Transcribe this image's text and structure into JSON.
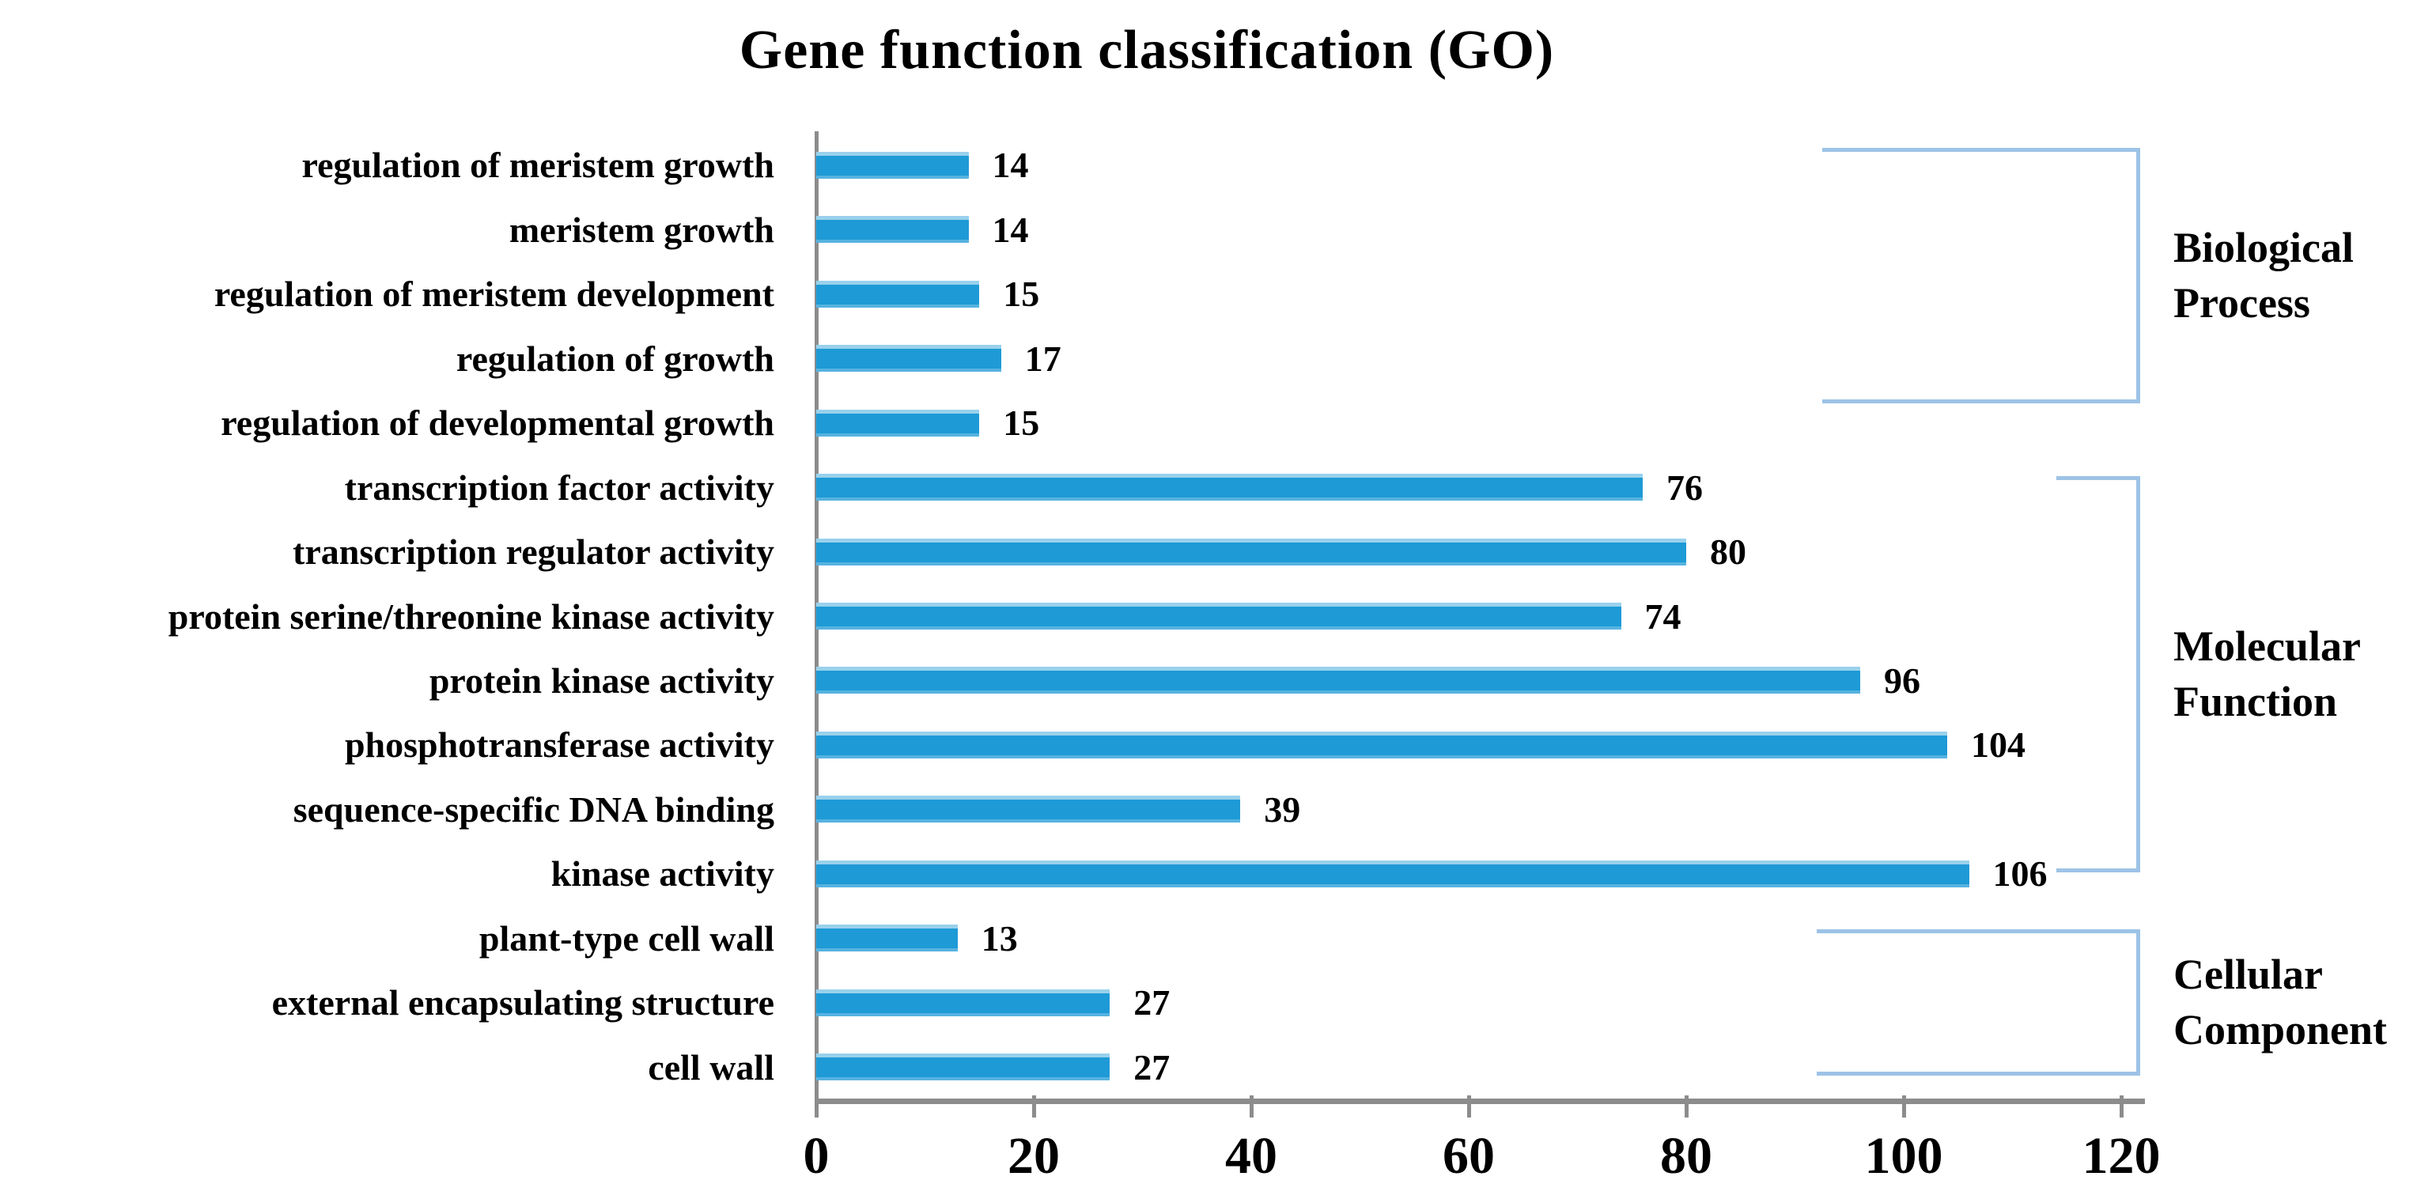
{
  "title": "Gene function classification (GO)",
  "chart_data": {
    "type": "bar",
    "orientation": "horizontal",
    "title": "Gene function classification (GO)",
    "categories": [
      "regulation of meristem growth",
      "meristem growth",
      "regulation of meristem development",
      "regulation of growth",
      "regulation of developmental growth",
      "transcription factor activity",
      "transcription regulator activity",
      "protein serine/threonine kinase activity",
      "protein kinase activity",
      "phosphotransferase activity",
      "sequence-specific DNA binding",
      "kinase activity",
      "plant-type cell wall",
      "external encapsulating structure",
      "cell wall"
    ],
    "values": [
      14,
      14,
      15,
      17,
      15,
      76,
      80,
      74,
      96,
      104,
      39,
      106,
      13,
      27,
      27
    ],
    "xlim": [
      0,
      120
    ],
    "x_ticks": [
      0,
      20,
      40,
      60,
      80,
      100,
      120
    ],
    "xlabel": "",
    "ylabel": "",
    "grid": false,
    "legend": false,
    "data_labels": true,
    "groups": [
      {
        "label": "Biological Process",
        "start_category": "regulation of meristem growth",
        "end_category": "regulation of developmental growth"
      },
      {
        "label": "Molecular Function",
        "start_category": "transcription factor activity",
        "end_category": "kinase activity"
      },
      {
        "label": "Cellular Component",
        "start_category": "plant-type cell wall",
        "end_category": "cell wall"
      }
    ],
    "colors": {
      "bar": "#1E9AD6",
      "bracket": "#9DC3E6",
      "axis": "#8C8C8C",
      "text": "#000000",
      "background": "#FFFFFF"
    }
  }
}
